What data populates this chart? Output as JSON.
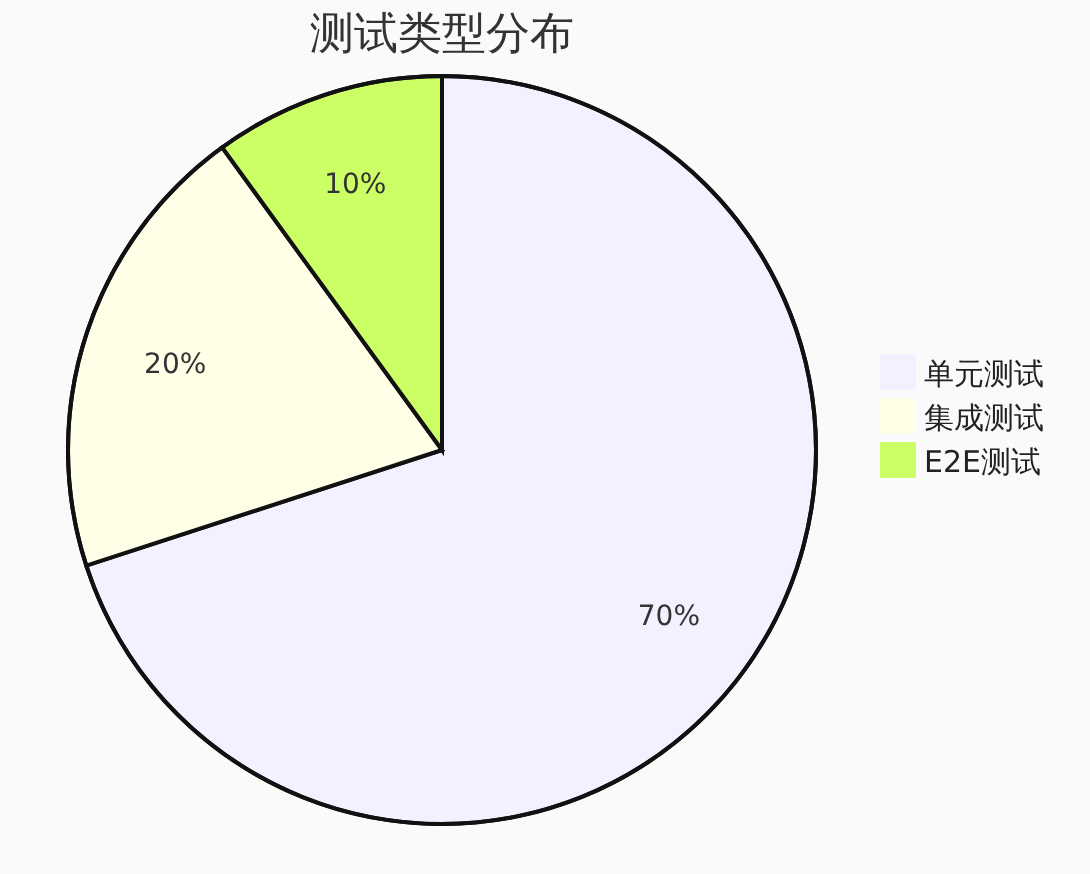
{
  "chart_data": {
    "type": "pie",
    "title": "测试类型分布",
    "categories": [
      "单元测试",
      "集成测试",
      "E2E测试"
    ],
    "values": [
      70,
      20,
      10
    ],
    "colors": [
      "#f1f1ff",
      "#ffffe8",
      "#ccff66"
    ],
    "value_labels": [
      "70%",
      "20%",
      "10%"
    ],
    "legend": "right"
  }
}
